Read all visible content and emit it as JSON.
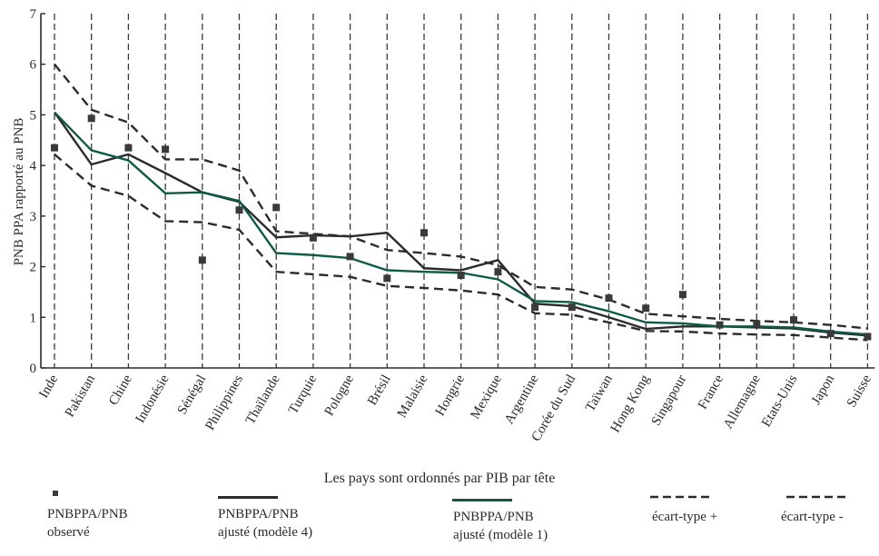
{
  "chart_data": {
    "type": "line",
    "ylabel": "PNB PPA  rapporté au PNB",
    "xlabel": "Les pays sont ordonnés par PIB par tête",
    "ylim": [
      0,
      7
    ],
    "yticks": [
      0,
      1,
      2,
      3,
      4,
      5,
      6,
      7
    ],
    "grid": "vertical dashed lines at each country",
    "categories": [
      "Inde",
      "Pakistan",
      "Chine",
      "Indonésie",
      "Sénégal",
      "Philippines",
      "Thaïlande",
      "Turquie",
      "Pologne",
      "Brésil",
      "Malaisie",
      "Hongrie",
      "Mexique",
      "Argentine",
      "Corée du Sud",
      "Taïwan",
      "Hong Kong",
      "Singapour",
      "France",
      "Allemagne",
      "Etats-Unis",
      "Japon",
      "Suisse"
    ],
    "series": [
      {
        "name": "PNBPPA/PNB observé",
        "style": "square-markers",
        "color": "#3a3a3a",
        "values": [
          4.35,
          4.93,
          4.35,
          4.32,
          2.13,
          3.12,
          3.17,
          2.57,
          2.2,
          1.77,
          2.67,
          1.83,
          1.9,
          1.2,
          1.2,
          1.38,
          1.18,
          1.45,
          0.85,
          0.87,
          0.95,
          0.68,
          0.62
        ]
      },
      {
        "name": "PNBPPA/PNB ajusté (modèle 4)",
        "style": "solid",
        "color": "#2b2b2b",
        "values": [
          5.05,
          4.02,
          4.22,
          3.85,
          3.47,
          3.28,
          2.58,
          2.62,
          2.6,
          2.67,
          1.97,
          1.93,
          2.13,
          1.27,
          1.22,
          1.0,
          0.77,
          0.82,
          0.82,
          0.8,
          0.78,
          0.7,
          0.64
        ]
      },
      {
        "name": "PNBPPA/PNB ajusté (modèle 1)",
        "style": "solid",
        "color": "#0d5a48",
        "values": [
          5.05,
          4.3,
          4.1,
          3.45,
          3.47,
          3.3,
          2.27,
          2.23,
          2.17,
          1.93,
          1.9,
          1.88,
          1.75,
          1.32,
          1.3,
          1.12,
          0.9,
          0.88,
          0.82,
          0.82,
          0.8,
          0.72,
          0.66
        ]
      },
      {
        "name": "écart-type +",
        "style": "dashed",
        "color": "#2b2b2b",
        "values": [
          6.0,
          5.1,
          4.85,
          4.12,
          4.12,
          3.9,
          2.7,
          2.65,
          2.6,
          2.33,
          2.27,
          2.2,
          2.03,
          1.6,
          1.55,
          1.35,
          1.07,
          1.02,
          0.97,
          0.93,
          0.9,
          0.85,
          0.78
        ]
      },
      {
        "name": "écart-type -",
        "style": "dashed",
        "color": "#2b2b2b",
        "values": [
          4.22,
          3.6,
          3.4,
          2.9,
          2.88,
          2.73,
          1.9,
          1.85,
          1.8,
          1.62,
          1.58,
          1.53,
          1.45,
          1.08,
          1.05,
          0.9,
          0.73,
          0.72,
          0.68,
          0.66,
          0.65,
          0.6,
          0.55
        ]
      }
    ],
    "legend_position": "bottom"
  },
  "legend": {
    "observed": {
      "line1": "PNBPPA/PNB",
      "line2": "observé"
    },
    "model4": {
      "line1": "PNBPPA/PNB",
      "line2": "ajusté (modèle 4)"
    },
    "model1": {
      "line1": "PNBPPA/PNB",
      "line2": "ajusté (modèle 1)"
    },
    "sd_plus": {
      "line1": "écart-type +"
    },
    "sd_minus": {
      "line1": "écart-type -"
    }
  },
  "colors": {
    "axis": "#2a2a2a",
    "model1": "#0d5a48",
    "model4": "#2b2b2b",
    "marker": "#3a3a3a"
  }
}
